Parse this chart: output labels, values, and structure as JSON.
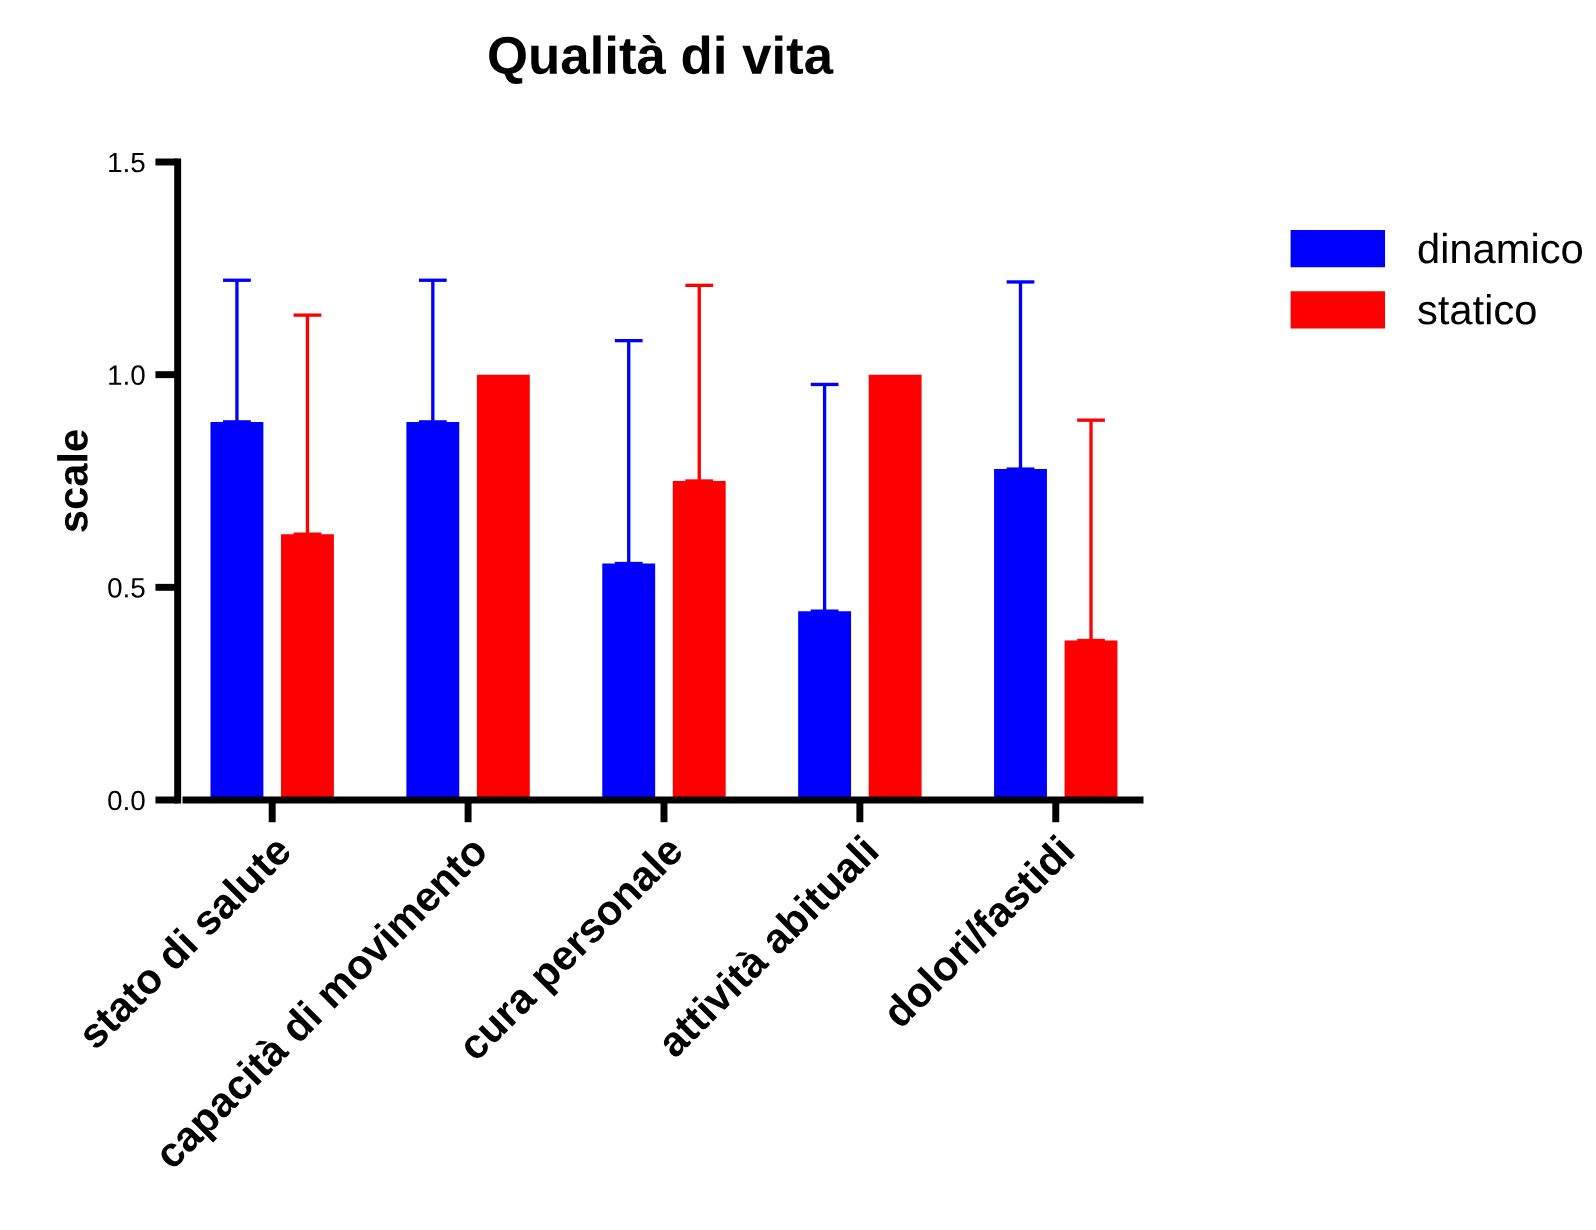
{
  "chart_data": {
    "type": "bar",
    "title": "Qualità di vita",
    "ylabel": "scale",
    "categories": [
      "stato di salute",
      "capacità di movimento",
      "cura personale",
      "attività abituali",
      "dolori/fastidi"
    ],
    "series": [
      {
        "name": "dinamico",
        "color": "#0000ff",
        "values": [
          0.889,
          0.889,
          0.556,
          0.444,
          0.778
        ],
        "errors": [
          [
            0.889,
            1.222
          ],
          [
            0.889,
            1.222
          ],
          [
            0.556,
            1.08
          ],
          [
            0.444,
            0.977
          ],
          [
            0.778,
            1.218
          ]
        ]
      },
      {
        "name": "statico",
        "color": "#ff0000",
        "values": [
          0.625,
          1.0,
          0.75,
          1.0,
          0.375
        ],
        "errors": [
          [
            0.625,
            1.14
          ],
          null,
          [
            0.75,
            1.21
          ],
          null,
          [
            0.375,
            0.893
          ]
        ]
      }
    ],
    "ylim": [
      0,
      1.5
    ],
    "yticks": [
      {
        "value": 0,
        "label": "0.0"
      },
      {
        "value": 0.5,
        "label": "0.5"
      },
      {
        "value": 1,
        "label": "1.0"
      },
      {
        "value": 1.5,
        "label": "1.5"
      }
    ],
    "grid": false,
    "legend": "top right"
  }
}
